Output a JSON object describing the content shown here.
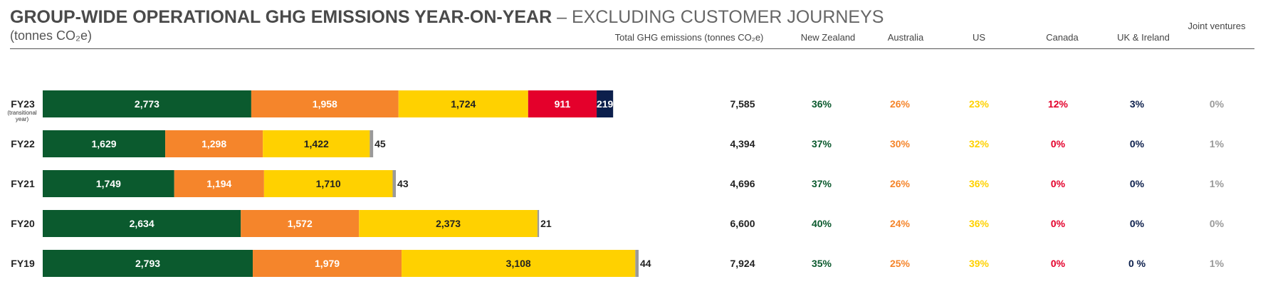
{
  "header": {
    "title_bold": "GROUP-WIDE OPERATIONAL GHG EMISSIONS YEAR-ON-YEAR",
    "title_light": " – EXCLUDING CUSTOMER JOURNEYS",
    "subtitle": "(tonnes CO₂e)"
  },
  "columns": {
    "total": "Total GHG  emissions  (tonnes CO₂e)",
    "nz": "New Zealand",
    "au": "Australia",
    "us": "US",
    "ca": "Canada",
    "uk": "UK & Ireland",
    "jv": "Joint ventures"
  },
  "colors": {
    "nz": "#0b5a2e",
    "au": "#f5852b",
    "us": "#ffd100",
    "ca": "#e4002b",
    "uk": "#0c1f4c",
    "jv": "#9a9a9a"
  },
  "chart_data": {
    "type": "bar",
    "orientation": "horizontal",
    "stacked": true,
    "title": "GROUP-WIDE OPERATIONAL GHG EMISSIONS YEAR-ON-YEAR – EXCLUDING CUSTOMER JOURNEYS",
    "subtitle": "(tonnes CO₂e)",
    "categories": [
      "FY23",
      "FY22",
      "FY21",
      "FY20",
      "FY19"
    ],
    "category_notes": [
      "(transitional year)",
      "",
      "",
      "",
      ""
    ],
    "series": [
      {
        "name": "New Zealand",
        "values": [
          2773,
          1629,
          1749,
          2634,
          2793
        ],
        "labels": [
          "2,773",
          "1,629",
          "1,749",
          "2,634",
          "2,793"
        ]
      },
      {
        "name": "Australia",
        "values": [
          1958,
          1298,
          1194,
          1572,
          1979
        ],
        "labels": [
          "1,958",
          "1,298",
          "1,194",
          "1,572",
          "1,979"
        ]
      },
      {
        "name": "US",
        "values": [
          1724,
          1422,
          1710,
          2373,
          3108
        ],
        "labels": [
          "1,724",
          "1,422",
          "1,710",
          "2,373",
          "3,108"
        ]
      },
      {
        "name": "Canada",
        "values": [
          911,
          0,
          0,
          0,
          0
        ],
        "labels": [
          "911",
          "",
          "",
          "",
          ""
        ]
      },
      {
        "name": "UK & Ireland",
        "values": [
          219,
          0,
          0,
          0,
          0
        ],
        "labels": [
          "219",
          "",
          "",
          "",
          ""
        ]
      },
      {
        "name": "Joint ventures",
        "values": [
          0,
          45,
          43,
          21,
          44
        ],
        "labels": [
          "",
          "45",
          "43",
          "21",
          "44"
        ]
      }
    ],
    "totals": [
      "7,585",
      "4,394",
      "4,696",
      "6,600",
      "7,924"
    ],
    "percentages": {
      "nz": [
        "36%",
        "37%",
        "37%",
        "40%",
        "35%"
      ],
      "au": [
        "26%",
        "30%",
        "26%",
        "24%",
        "25%"
      ],
      "us": [
        "23%",
        "32%",
        "36%",
        "36%",
        "39%"
      ],
      "ca": [
        "12%",
        "0%",
        "0%",
        "0%",
        "0%"
      ],
      "uk": [
        "3%",
        "0%",
        "0%",
        "0%",
        "0 %"
      ],
      "jv": [
        "0%",
        "1%",
        "1%",
        "0%",
        "1%"
      ]
    },
    "xlim": [
      0,
      8100
    ],
    "grid": false,
    "legend": "none"
  }
}
